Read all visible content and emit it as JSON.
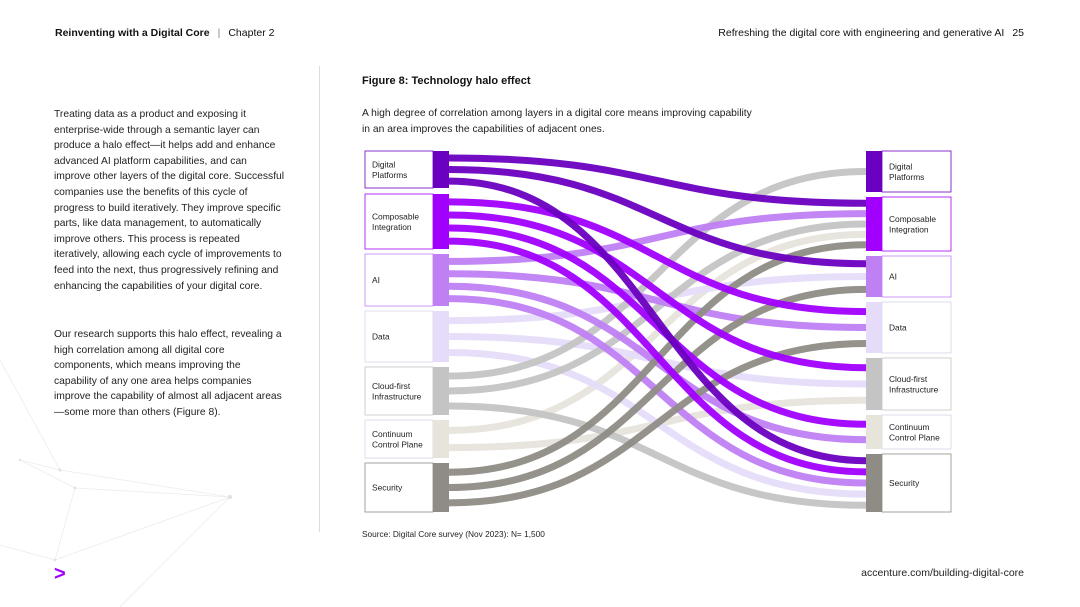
{
  "header": {
    "doc_title": "Reinventing with a Digital Core",
    "chapter": "Chapter 2",
    "section_title": "Refreshing the digital core with engineering and generative AI",
    "page_number": "25"
  },
  "body_text": {
    "paragraph1": "Treating data as a product and exposing it enterprise-wide through a semantic layer can produce a halo effect—it helps add and enhance advanced AI platform capabilities, and can improve other layers of the digital core. Successful companies use the benefits of this cycle of progress to build iteratively. They improve specific parts, like data management, to automatically improve others.  This process is repeated iteratively, allowing each cycle of improvements to feed into the next, thus progressively refining and enhancing the capabilities of your digital core.",
    "paragraph2": "Our research supports this halo effect, revealing a high correlation among all digital core components, which means improving the capability of any one area helps companies improve the capability of almost all adjacent areas—some more than others (Figure 8)."
  },
  "figure": {
    "title": "Figure 8: Technology halo effect",
    "description": "A high degree of correlation among layers in a digital core means improving capability in an area improves the capabilities of adjacent ones.",
    "source": "Source: Digital Core survey (Nov 2023): N= 1,500"
  },
  "diagram": {
    "left_nodes": [
      {
        "id": "dp",
        "label": [
          "Digital",
          "Platforms"
        ],
        "color": "#6a00c0"
      },
      {
        "id": "ci",
        "label": [
          "Composable",
          "Integration"
        ],
        "color": "#a100ff"
      },
      {
        "id": "ai",
        "label": [
          "AI"
        ],
        "color": "#bf80f4"
      },
      {
        "id": "da",
        "label": [
          "Data"
        ],
        "color": "#e6dcfa"
      },
      {
        "id": "cf",
        "label": [
          "Cloud-first",
          "Infrastructure"
        ],
        "color": "#c4c4c4"
      },
      {
        "id": "cc",
        "label": [
          "Continuum",
          "Control Plane"
        ],
        "color": "#e7e4dc"
      },
      {
        "id": "se",
        "label": [
          "Security"
        ],
        "color": "#8f8c86"
      }
    ],
    "right_nodes": [
      {
        "id": "dp",
        "label": [
          "Digital",
          "Platforms"
        ],
        "color": "#6a00c0"
      },
      {
        "id": "ci",
        "label": [
          "Composable",
          "Integration"
        ],
        "color": "#a100ff"
      },
      {
        "id": "ai",
        "label": [
          "AI"
        ],
        "color": "#bf80f4"
      },
      {
        "id": "da",
        "label": [
          "Data"
        ],
        "color": "#e6dcfa"
      },
      {
        "id": "cf",
        "label": [
          "Cloud-first",
          "Infrastructure"
        ],
        "color": "#c4c4c4"
      },
      {
        "id": "cc",
        "label": [
          "Continuum",
          "Control Plane"
        ],
        "color": "#e7e4dc"
      },
      {
        "id": "se",
        "label": [
          "Security"
        ],
        "color": "#8f8c86"
      }
    ],
    "links": [
      {
        "from": "cc",
        "to": "ci"
      },
      {
        "from": "cf",
        "to": "dp"
      },
      {
        "from": "da",
        "to": "cf"
      },
      {
        "from": "da",
        "to": "se"
      },
      {
        "from": "da",
        "to": "ai"
      },
      {
        "from": "cf",
        "to": "ci"
      },
      {
        "from": "cc",
        "to": "cf"
      },
      {
        "from": "cf",
        "to": "se"
      },
      {
        "from": "se",
        "to": "ai"
      },
      {
        "from": "se",
        "to": "da"
      },
      {
        "from": "se",
        "to": "ci"
      },
      {
        "from": "ai",
        "to": "ci"
      },
      {
        "from": "ai",
        "to": "da"
      },
      {
        "from": "ai",
        "to": "se"
      },
      {
        "from": "ai",
        "to": "cc"
      },
      {
        "from": "ci",
        "to": "se"
      },
      {
        "from": "ci",
        "to": "cc"
      },
      {
        "from": "ci",
        "to": "cf"
      },
      {
        "from": "ci",
        "to": "da"
      },
      {
        "from": "dp",
        "to": "se"
      },
      {
        "from": "dp",
        "to": "ai"
      },
      {
        "from": "dp",
        "to": "ci"
      }
    ]
  },
  "footer": {
    "logo": ">",
    "link": "accenture.com/building-digital-core"
  }
}
